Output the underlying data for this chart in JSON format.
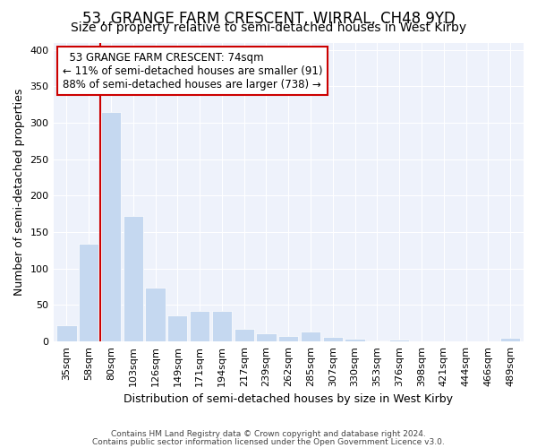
{
  "title_line1": "53, GRANGE FARM CRESCENT, WIRRAL, CH48 9YD",
  "title_line2": "Size of property relative to semi-detached houses in West Kirby",
  "xlabel": "Distribution of semi-detached houses by size in West Kirby",
  "ylabel": "Number of semi-detached properties",
  "categories": [
    "35sqm",
    "58sqm",
    "80sqm",
    "103sqm",
    "126sqm",
    "149sqm",
    "171sqm",
    "194sqm",
    "217sqm",
    "239sqm",
    "262sqm",
    "285sqm",
    "307sqm",
    "330sqm",
    "353sqm",
    "376sqm",
    "398sqm",
    "421sqm",
    "444sqm",
    "466sqm",
    "489sqm"
  ],
  "values": [
    22,
    134,
    315,
    172,
    74,
    36,
    42,
    42,
    18,
    11,
    8,
    14,
    6,
    4,
    1,
    3,
    0,
    0,
    0,
    0,
    5
  ],
  "bar_color": "#c5d8f0",
  "bar_edgecolor": "#c5d8f0",
  "line_color": "#cc0000",
  "annotation_label": "53 GRANGE FARM CRESCENT: 74sqm",
  "annotation_smaller": "← 11% of semi-detached houses are smaller (91)",
  "annotation_larger": "88% of semi-detached houses are larger (738) →",
  "annotation_box_facecolor": "#ffffff",
  "annotation_box_edgecolor": "#cc0000",
  "ylim": [
    0,
    410
  ],
  "yticks": [
    0,
    50,
    100,
    150,
    200,
    250,
    300,
    350,
    400
  ],
  "bg_color": "#eef2fb",
  "grid_color": "#ffffff",
  "title_fontsize": 12,
  "subtitle_fontsize": 10,
  "tick_fontsize": 8,
  "label_fontsize": 9,
  "annotation_fontsize": 8.5,
  "footnote1": "Contains HM Land Registry data © Crown copyright and database right 2024.",
  "footnote2": "Contains public sector information licensed under the Open Government Licence v3.0."
}
